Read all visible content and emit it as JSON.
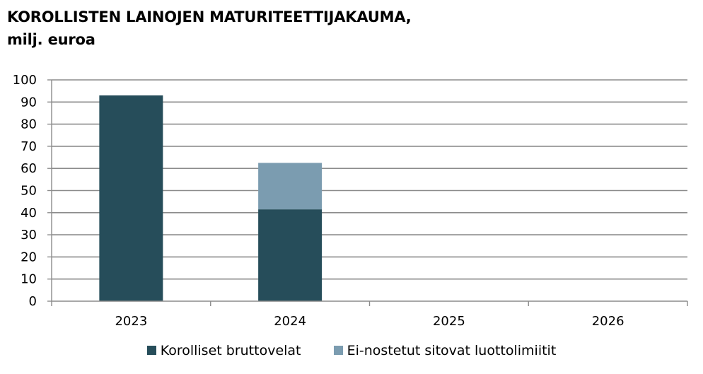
{
  "chart_data": {
    "type": "bar",
    "stacked": true,
    "title": "KOROLLISTEN LAINOJEN MATURITEETTIJAKAUMA,",
    "subtitle": "milj. euroa",
    "categories": [
      "2023",
      "2024",
      "2025",
      "2026"
    ],
    "series": [
      {
        "name": "Korolliset bruttovelat",
        "values": [
          93,
          41.5,
          0,
          0
        ],
        "color": "#264d5a"
      },
      {
        "name": "Ei-nostetut sitovat luottolimiitit",
        "values": [
          0,
          21,
          0,
          0
        ],
        "color": "#7b9cb0"
      }
    ],
    "ylim": [
      0,
      100
    ],
    "yticks": [
      "0",
      "10",
      "20",
      "30",
      "40",
      "50",
      "60",
      "70",
      "80",
      "90",
      "100"
    ],
    "grid": true,
    "legend_position": "bottom"
  }
}
